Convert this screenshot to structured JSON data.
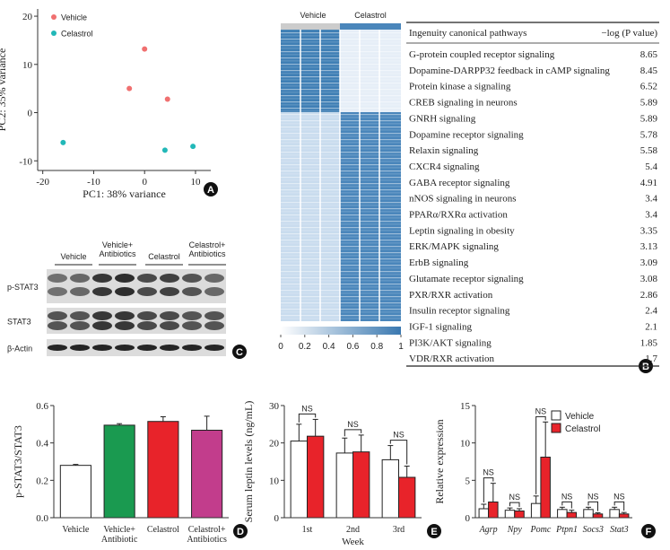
{
  "chart_data": [
    {
      "type": "scatter",
      "panel": "A",
      "xlabel": "PC1: 38% variance",
      "ylabel": "PC2: 35% variance",
      "xlim": [
        -21,
        13
      ],
      "ylim": [
        -12,
        21.5
      ],
      "xticks": [
        -20,
        -10,
        0,
        10
      ],
      "yticks": [
        -10,
        0,
        10,
        20
      ],
      "legend": "upper left",
      "series": [
        {
          "name": "Vehicle",
          "color": "#f07070",
          "x": [
            0,
            -3,
            4.5
          ],
          "y": [
            13.2,
            5,
            2.8
          ]
        },
        {
          "name": "Celastrol",
          "color": "#22b8b8",
          "x": [
            -16,
            4,
            9.5
          ],
          "y": [
            -6.2,
            -7.8,
            -7
          ]
        }
      ]
    },
    {
      "type": "heatmap",
      "panel": "B",
      "column_groups": [
        "Vehicle",
        "Celastrol"
      ],
      "clim": [
        0,
        1
      ],
      "colorbar_ticks": [
        0,
        0.2,
        0.4,
        0.6,
        0.8,
        1
      ],
      "colors": [
        "#ffffff",
        "#3a78b0"
      ]
    },
    {
      "type": "bar",
      "panel": "D",
      "ylabel": "p-STAT3/STAT3",
      "categories": [
        "Vehicle",
        "Vehicle+\nAntibiotic",
        "Celastrol",
        "Celastrol+\nAntibiotics"
      ],
      "values": [
        0.28,
        0.495,
        0.515,
        0.468
      ],
      "errors": [
        0.005,
        0.008,
        0.025,
        0.075
      ],
      "colors": [
        "#ffffff",
        "#1a9a50",
        "#e8232a",
        "#c23d8c"
      ],
      "ylim": [
        0,
        0.6
      ],
      "yticks": [
        {
          "value": 0,
          "label": "0.0"
        },
        0.2,
        0.4,
        0.6
      ]
    },
    {
      "type": "grouped_bar",
      "panel": "E",
      "ylabel": "Serum leptin levels (ng/mL)",
      "xlabel": "Week",
      "categories": [
        "1st",
        "2nd",
        "3rd"
      ],
      "series": [
        {
          "name": "Vehicle",
          "color": "#ffffff",
          "values": [
            20.5,
            17.3,
            15.5
          ],
          "errors": [
            4.5,
            4,
            3.8
          ]
        },
        {
          "name": "Celastrol",
          "color": "#e8232a",
          "values": [
            21.8,
            17.6,
            10.8
          ],
          "errors": [
            4.5,
            4.5,
            3
          ]
        }
      ],
      "ylim": [
        0,
        30
      ],
      "yticks": [
        0,
        10,
        20,
        30
      ],
      "annotations": [
        "NS",
        "NS",
        "NS"
      ]
    },
    {
      "type": "grouped_bar",
      "panel": "F",
      "ylabel": "Relative expression",
      "legend": "upper right",
      "categories": [
        "Agrp",
        "Npy",
        "Pomc",
        "Ptpn1",
        "Socs3",
        "Stat3"
      ],
      "series": [
        {
          "name": "Vehicle",
          "color": "#ffffff",
          "values": [
            1.2,
            1,
            1.9,
            1.1,
            1.1,
            1.1
          ],
          "errors": [
            0.6,
            0.3,
            1,
            0.3,
            0.3,
            0.3
          ]
        },
        {
          "name": "Celastrol",
          "color": "#e8232a",
          "values": [
            2.1,
            0.9,
            8.1,
            0.7,
            0.5,
            0.5
          ],
          "errors": [
            2.5,
            0.3,
            4.7,
            0.3,
            0.15,
            0.2
          ]
        }
      ],
      "ylim": [
        0,
        15
      ],
      "yticks": [
        0,
        5,
        10,
        15
      ],
      "annotations": [
        "NS",
        "NS",
        "NS",
        "NS",
        "NS",
        "NS"
      ]
    }
  ],
  "table": {
    "headers": [
      "Ingenuity canonical pathways",
      "−log (P value)"
    ],
    "rows": [
      [
        "G-protein coupled receptor signaling",
        "8.65"
      ],
      [
        "Dopamine-DARPP32 feedback in cAMP signaling",
        "8.45"
      ],
      [
        "Protein kinase a signaling",
        "6.52"
      ],
      [
        "CREB signaling in neurons",
        "5.89"
      ],
      [
        "GNRH signaling",
        "5.89"
      ],
      [
        "Dopamine receptor signaling",
        "5.78"
      ],
      [
        "Relaxin signaling",
        "5.58"
      ],
      [
        "CXCR4 signaling",
        "5.4"
      ],
      [
        "GABA receptor signaling",
        "4.91"
      ],
      [
        "nNOS signaling in neurons",
        "3.4"
      ],
      [
        "PPARα/RXRα activation",
        "3.4"
      ],
      [
        "Leptin signaling in obesity",
        "3.35"
      ],
      [
        "ERK/MAPK signaling",
        "3.13"
      ],
      [
        "ErbB signaling",
        "3.09"
      ],
      [
        "Glutamate receptor signaling",
        "3.08"
      ],
      [
        "PXR/RXR activation",
        "2.86"
      ],
      [
        "Insulin receptor signaling",
        "2.4"
      ],
      [
        "IGF-1 signaling",
        "2.1"
      ],
      [
        "PI3K/AKT signaling",
        "1.85"
      ],
      [
        "VDR/RXR activation",
        "1.7"
      ]
    ]
  },
  "blot": {
    "panel": "C",
    "groups": [
      "Vehicle",
      "Vehicle+\nAntibiotics",
      "Celastrol",
      "Celastrol+\nAntibiotics"
    ],
    "rows": [
      "p-STAT3",
      "STAT3",
      "β-Actin"
    ]
  }
}
